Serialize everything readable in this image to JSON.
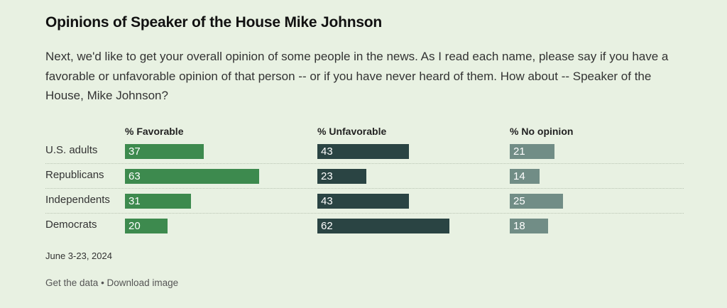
{
  "header": {
    "title": "Opinions of Speaker of the House Mike Johnson",
    "subtitle": "Next, we'd like to get your overall opinion of some people in the news. As I read each name, please say if you have a favorable or unfavorable opinion of that person -- or if you have never heard of them. How about -- Speaker of the House, Mike Johnson?"
  },
  "chart_data": {
    "type": "bar",
    "orientation": "horizontal",
    "categories": [
      "U.S. adults",
      "Republicans",
      "Independents",
      "Democrats"
    ],
    "series": [
      {
        "name": "% Favorable",
        "values": [
          37,
          63,
          31,
          20
        ],
        "color": "#3d8a4e"
      },
      {
        "name": "% Unfavorable",
        "values": [
          43,
          23,
          43,
          62
        ],
        "color": "#2a4443"
      },
      {
        "name": "% No opinion",
        "values": [
          21,
          14,
          25,
          18
        ],
        "color": "#718d86"
      }
    ],
    "title": "Opinions of Speaker of the House Mike Johnson",
    "xlabel": "",
    "ylabel": "",
    "grid": false
  },
  "footer": {
    "date": "June 3-23, 2024",
    "get_data": "Get the data",
    "separator": " • ",
    "download": "Download image"
  }
}
